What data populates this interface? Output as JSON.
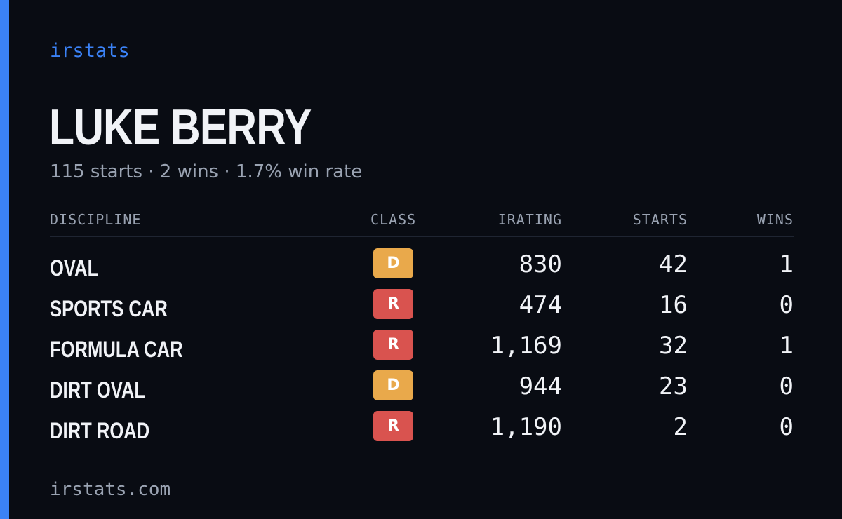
{
  "brand": "irstats",
  "driver": {
    "name": "LUKE BERRY",
    "summary": "115 starts · 2 wins · 1.7% win rate"
  },
  "table": {
    "headers": {
      "discipline": "DISCIPLINE",
      "class": "CLASS",
      "irating": "IRATING",
      "starts": "STARTS",
      "wins": "WINS"
    },
    "rows": [
      {
        "discipline": "OVAL",
        "class": "D",
        "irating": "830",
        "starts": "42",
        "wins": "1"
      },
      {
        "discipline": "SPORTS CAR",
        "class": "R",
        "irating": "474",
        "starts": "16",
        "wins": "0"
      },
      {
        "discipline": "FORMULA CAR",
        "class": "R",
        "irating": "1,169",
        "starts": "32",
        "wins": "1"
      },
      {
        "discipline": "DIRT OVAL",
        "class": "D",
        "irating": "944",
        "starts": "23",
        "wins": "0"
      },
      {
        "discipline": "DIRT ROAD",
        "class": "R",
        "irating": "1,190",
        "starts": "2",
        "wins": "0"
      }
    ]
  },
  "class_colors": {
    "D": "#e9a94b",
    "R": "#d9534f"
  },
  "footer": "irstats.com",
  "colors": {
    "accent": "#3b82f6",
    "background": "#090c13"
  }
}
